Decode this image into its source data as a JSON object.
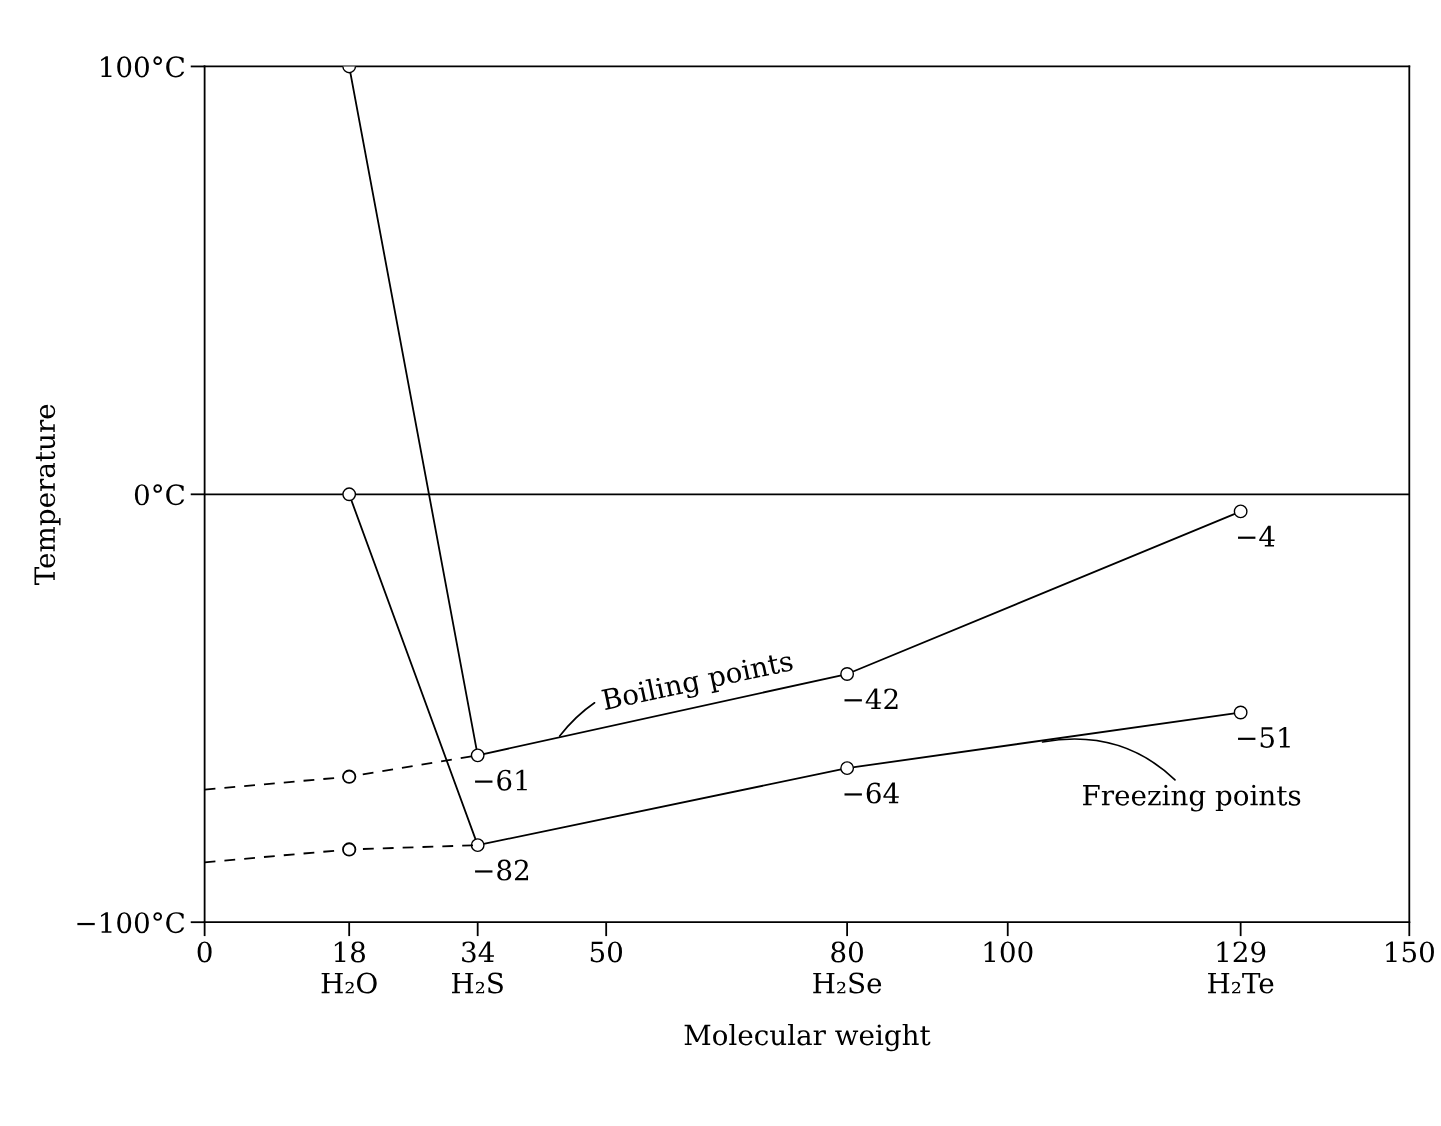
{
  "chart_data": {
    "type": "line",
    "xlabel": "Molecular weight",
    "ylabel": "Temperature",
    "xlim": [
      0,
      150
    ],
    "ylim": [
      -100,
      100
    ],
    "xticks": [
      0,
      {
        "value": 18,
        "label": "18\nH₂O"
      },
      {
        "value": 34,
        "label": "34\nH₂S"
      },
      50,
      {
        "value": 80,
        "label": "80\nH₂Se"
      },
      100,
      {
        "value": 129,
        "label": "129\nH₂Te"
      },
      150
    ],
    "yticks": [
      {
        "value": -100,
        "label": "−100°C"
      },
      {
        "value": 0,
        "label": "0°C"
      },
      {
        "value": 100,
        "label": "100°C"
      }
    ],
    "ref_lines": [
      {
        "axis": "y",
        "value": 0,
        "color": "#000000",
        "line_style": "solid"
      }
    ],
    "grid": false,
    "legend": false,
    "series": [
      {
        "x": [
          18,
          34,
          80,
          129
        ],
        "values": [
          100,
          -61,
          -42,
          -4
        ],
        "color": "#000000",
        "marker": "circle",
        "line_style": "solid",
        "value_labels": [
          null,
          "−61",
          "−42",
          "−4"
        ]
      },
      {
        "x": [
          18,
          34,
          80,
          129
        ],
        "values": [
          0,
          -82,
          -64,
          -51
        ],
        "color": "#000000",
        "marker": "circle",
        "line_style": "solid",
        "value_labels": [
          null,
          "−82",
          "−64",
          "−51"
        ]
      },
      {
        "x": [
          0,
          18,
          34
        ],
        "values": [
          -69,
          -66,
          -61
        ],
        "color": "#000000",
        "marker": "none",
        "line_style": "dashed"
      },
      {
        "x": [
          0,
          18,
          34
        ],
        "values": [
          -86,
          -83,
          -82
        ],
        "color": "#000000",
        "marker": "none",
        "line_style": "dashed"
      },
      {
        "type": "scatter",
        "x": [
          18,
          18
        ],
        "values": [
          -66,
          -83
        ],
        "color": "#000000",
        "marker": "circle"
      }
    ],
    "annotations": [
      {
        "text": "Boiling points",
        "x": 44,
        "y": -57
      },
      {
        "text": "Freezing points",
        "x": 104,
        "y": -58
      }
    ]
  }
}
